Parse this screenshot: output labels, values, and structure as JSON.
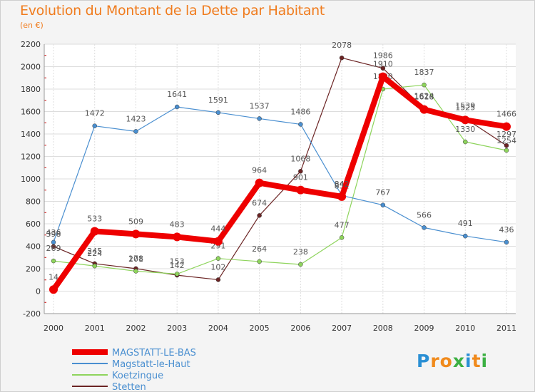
{
  "header": {
    "title": "Evolution du Montant de la Dette par Habitant",
    "subtitle": "(en €)"
  },
  "logo": {
    "letters": [
      "P",
      "r",
      "o",
      "x",
      "i",
      "t",
      "i"
    ],
    "colors": [
      "#2a8fd4",
      "#f08a1c",
      "#f08a1c",
      "#3cb043",
      "#2a8fd4",
      "#f08a1c",
      "#3cb043"
    ]
  },
  "chart_data": {
    "type": "line",
    "x": [
      "2000",
      "2001",
      "2002",
      "2003",
      "2004",
      "2005",
      "2006",
      "2007",
      "2008",
      "2009",
      "2010",
      "2011"
    ],
    "ylim": [
      -200,
      2200
    ],
    "yticks": [
      -200,
      0,
      200,
      400,
      600,
      800,
      1000,
      1200,
      1400,
      1600,
      1800,
      2000,
      2200
    ],
    "grid": true,
    "legend_position": "bottom-left",
    "series": [
      {
        "name": "MAGSTATT-LE-BAS",
        "color": "#ee0000",
        "values": [
          14,
          533,
          509,
          483,
          444,
          964,
          901,
          842,
          1910,
          1618,
          1525,
          1466
        ]
      },
      {
        "name": "Magstatt-le-Haut",
        "color": "#4a8fd0",
        "values": [
          436,
          1472,
          1423,
          1641,
          1591,
          1537,
          1486,
          852,
          767,
          566,
          491,
          436
        ]
      },
      {
        "name": "Koetzingue",
        "color": "#8ed45c",
        "values": [
          269,
          224,
          178,
          153,
          291,
          264,
          238,
          477,
          1800,
          1837,
          1330,
          1254
        ]
      },
      {
        "name": "Stetten",
        "color": "#6b2424",
        "values": [
          398,
          245,
          201,
          142,
          102,
          674,
          1068,
          2078,
          1986,
          1624,
          1539,
          1297
        ]
      }
    ]
  }
}
